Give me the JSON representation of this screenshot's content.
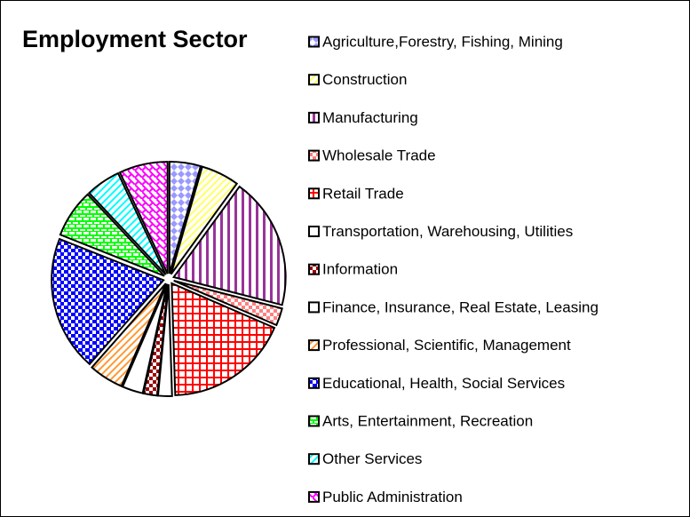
{
  "chart_data": {
    "type": "pie",
    "title": "Employment Sector",
    "categories": [
      "Agriculture,Forestry, Fishing, Mining",
      "Construction",
      "Manufacturing",
      "Wholesale Trade",
      "Retail Trade",
      "Transportation, Warehousing, Utilities",
      "Information",
      "Finance, Insurance, Real Estate, Leasing",
      "Professional, Scientific, Management",
      "Educational, Health, Social Services",
      "Arts, Entertainment, Recreation",
      "Other Services",
      "Public Administration"
    ],
    "values": [
      4.5,
      5.5,
      19,
      2.5,
      18,
      2,
      2,
      3,
      5,
      19.5,
      7,
      5,
      7
    ],
    "colors": [
      "#9999ff",
      "#ffff66",
      "#993399",
      "#ff8080",
      "#ff0000",
      "#ffffff",
      "#990000",
      "#ffffff",
      "#ff9933",
      "#0000ff",
      "#00ff00",
      "#00ffff",
      "#ff00ff"
    ],
    "legend": "right"
  }
}
